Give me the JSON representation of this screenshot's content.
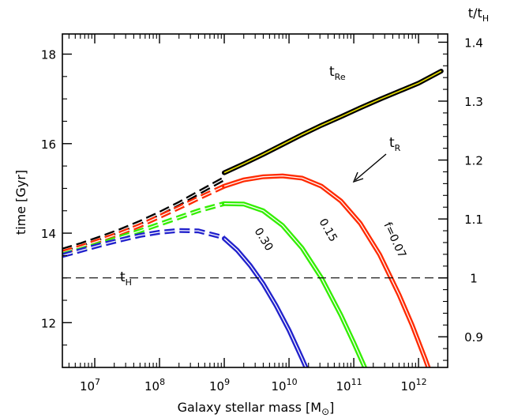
{
  "chart_data": {
    "type": "line",
    "xlabel": "Galaxy stellar mass [M",
    "xlabel_symbol": "⊙",
    "xlabel_close": "]",
    "ylabel": "time [Gyr]",
    "y2label_num": "t/t",
    "y2label_sub": "H",
    "xscale": "log",
    "xlim": [
      6.5,
      12.45
    ],
    "ylim": [
      11.0,
      18.45
    ],
    "y2lim": [
      0.848,
      1.414
    ],
    "x_ticks": [
      {
        "exp": 7,
        "label_base": "10",
        "label_exp": "7"
      },
      {
        "exp": 8,
        "label_base": "10",
        "label_exp": "8"
      },
      {
        "exp": 9,
        "label_base": "10",
        "label_exp": "9"
      },
      {
        "exp": 10,
        "label_base": "10",
        "label_exp": "10"
      },
      {
        "exp": 11,
        "label_base": "10",
        "label_exp": "11"
      },
      {
        "exp": 12,
        "label_base": "10",
        "label_exp": "12"
      }
    ],
    "y_ticks": [
      {
        "v": 12,
        "label": "12"
      },
      {
        "v": 14,
        "label": "14"
      },
      {
        "v": 16,
        "label": "16"
      },
      {
        "v": 18,
        "label": "18"
      }
    ],
    "y2_ticks": [
      {
        "v": 0.9,
        "label": "0.9"
      },
      {
        "v": 1.0,
        "label": "1"
      },
      {
        "v": 1.1,
        "label": "1.1"
      },
      {
        "v": 1.2,
        "label": "1.2"
      },
      {
        "v": 1.3,
        "label": "1.3"
      },
      {
        "v": 1.4,
        "label": "1.4"
      }
    ],
    "hline": {
      "y": 13.0,
      "label": "t",
      "label_sub": "H"
    },
    "series": [
      {
        "label": "t",
        "label_sub": "Re",
        "color": "#000000",
        "inner_color": "#e8e000",
        "dashed_x": [
          6.5,
          6.8,
          7.1,
          7.4,
          7.7,
          8.0,
          8.3,
          8.6,
          9.0
        ],
        "dashed_y": [
          13.62,
          13.75,
          13.9,
          14.06,
          14.24,
          14.44,
          14.66,
          14.9,
          15.22
        ],
        "solid_x": [
          9.0,
          9.3,
          9.6,
          9.9,
          10.2,
          10.5,
          10.8,
          11.1,
          11.4,
          11.7,
          12.0,
          12.35
        ],
        "solid_y": [
          15.35,
          15.55,
          15.76,
          15.98,
          16.2,
          16.41,
          16.6,
          16.8,
          16.99,
          17.17,
          17.35,
          17.62
        ]
      },
      {
        "label": "f=0.07",
        "color": "#ff2a00",
        "dashed_x": [
          6.5,
          6.8,
          7.1,
          7.4,
          7.7,
          8.0,
          8.3,
          8.6,
          9.0
        ],
        "dashed_y": [
          13.57,
          13.7,
          13.85,
          14.0,
          14.17,
          14.37,
          14.57,
          14.78,
          15.05
        ],
        "solid_x": [
          9.0,
          9.3,
          9.6,
          9.9,
          10.2,
          10.5,
          10.8,
          11.1,
          11.4,
          11.7,
          11.9,
          12.1,
          12.2
        ],
        "solid_y": [
          15.05,
          15.19,
          15.26,
          15.28,
          15.23,
          15.05,
          14.72,
          14.22,
          13.52,
          12.62,
          11.95,
          11.2,
          10.8
        ]
      },
      {
        "label": "0.15",
        "color": "#33ee00",
        "dashed_x": [
          6.5,
          6.8,
          7.1,
          7.4,
          7.7,
          8.0,
          8.3,
          8.6,
          9.0
        ],
        "dashed_y": [
          13.52,
          13.64,
          13.77,
          13.91,
          14.05,
          14.2,
          14.35,
          14.5,
          14.66
        ],
        "solid_x": [
          9.0,
          9.3,
          9.6,
          9.9,
          10.2,
          10.5,
          10.8,
          11.0,
          11.2,
          11.35
        ],
        "solid_y": [
          14.66,
          14.65,
          14.5,
          14.17,
          13.67,
          13.0,
          12.17,
          11.55,
          10.9,
          10.5
        ]
      },
      {
        "label": "0.30",
        "color": "#2222cc",
        "dashed_x": [
          6.5,
          6.8,
          7.1,
          7.4,
          7.7,
          8.0,
          8.3,
          8.6,
          9.0
        ],
        "dashed_y": [
          13.5,
          13.62,
          13.74,
          13.85,
          13.95,
          14.02,
          14.06,
          14.05,
          13.9
        ],
        "solid_x": [
          9.0,
          9.2,
          9.4,
          9.6,
          9.8,
          10.0,
          10.2,
          10.35,
          10.5
        ],
        "solid_y": [
          13.88,
          13.62,
          13.28,
          12.87,
          12.38,
          11.83,
          11.2,
          10.7,
          10.2
        ]
      }
    ],
    "annotations": {
      "tR_label": "t",
      "tR_sub": "R"
    }
  }
}
